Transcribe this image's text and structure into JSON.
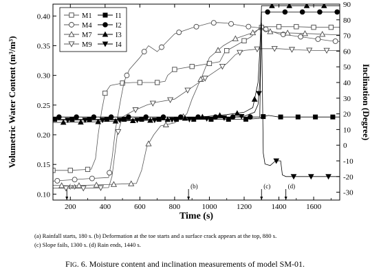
{
  "chart_data": {
    "type": "line",
    "xlabel": "Time (s)",
    "ylabel": "Volumetric Water Content (m³/m³)",
    "y2label": "Inclination (Degree)",
    "xlim": [
      100,
      1750
    ],
    "ylim": [
      0.09,
      0.42
    ],
    "y2lim": [
      -35,
      90
    ],
    "x_ticks": [
      200,
      400,
      600,
      800,
      1000,
      1200,
      1400,
      1600
    ],
    "y_ticks": [
      "0.10",
      "0.15",
      "0.20",
      "0.25",
      "0.30",
      "0.35",
      "0.40"
    ],
    "y2_ticks": [
      -30,
      -20,
      -10,
      0,
      10,
      20,
      30,
      40,
      50,
      60,
      70,
      80,
      90
    ],
    "legend_placement": "top-left",
    "series": [
      {
        "name": "M1",
        "axis": "left",
        "color": "#555555",
        "marker": "square-open",
        "points": [
          [
            100,
            0.14
          ],
          [
            200,
            0.14
          ],
          [
            320,
            0.142
          ],
          [
            345,
            0.16
          ],
          [
            360,
            0.2
          ],
          [
            380,
            0.24
          ],
          [
            400,
            0.27
          ],
          [
            430,
            0.283
          ],
          [
            500,
            0.287
          ],
          [
            560,
            0.288
          ],
          [
            700,
            0.288
          ],
          [
            745,
            0.29
          ],
          [
            760,
            0.3
          ],
          [
            800,
            0.31
          ],
          [
            900,
            0.315
          ],
          [
            1000,
            0.32
          ],
          [
            1060,
            0.323
          ],
          [
            1090,
            0.34
          ],
          [
            1150,
            0.35
          ],
          [
            1240,
            0.365
          ],
          [
            1290,
            0.38
          ],
          [
            1320,
            0.382
          ],
          [
            1400,
            0.382
          ],
          [
            1500,
            0.382
          ],
          [
            1600,
            0.381
          ],
          [
            1750,
            0.381
          ]
        ]
      },
      {
        "name": "M4",
        "axis": "left",
        "color": "#555555",
        "marker": "circle-open",
        "points": [
          [
            100,
            0.122
          ],
          [
            300,
            0.126
          ],
          [
            420,
            0.128
          ],
          [
            440,
            0.16
          ],
          [
            460,
            0.21
          ],
          [
            490,
            0.26
          ],
          [
            510,
            0.29
          ],
          [
            540,
            0.31
          ],
          [
            600,
            0.33
          ],
          [
            650,
            0.35
          ],
          [
            700,
            0.34
          ],
          [
            750,
            0.355
          ],
          [
            800,
            0.37
          ],
          [
            900,
            0.38
          ],
          [
            1000,
            0.388
          ],
          [
            1050,
            0.389
          ],
          [
            1100,
            0.388
          ],
          [
            1200,
            0.383
          ],
          [
            1290,
            0.38
          ],
          [
            1320,
            0.378
          ],
          [
            1400,
            0.37
          ],
          [
            1500,
            0.366
          ],
          [
            1600,
            0.362
          ],
          [
            1700,
            0.358
          ],
          [
            1750,
            0.357
          ]
        ]
      },
      {
        "name": "M7",
        "axis": "left",
        "color": "#555555",
        "marker": "triangle-up-open",
        "points": [
          [
            100,
            0.115
          ],
          [
            200,
            0.114
          ],
          [
            400,
            0.116
          ],
          [
            580,
            0.118
          ],
          [
            610,
            0.14
          ],
          [
            640,
            0.18
          ],
          [
            680,
            0.2
          ],
          [
            720,
            0.215
          ],
          [
            800,
            0.22
          ],
          [
            870,
            0.235
          ],
          [
            900,
            0.26
          ],
          [
            960,
            0.3
          ],
          [
            1000,
            0.33
          ],
          [
            1080,
            0.35
          ],
          [
            1150,
            0.362
          ],
          [
            1250,
            0.372
          ],
          [
            1300,
            0.38
          ],
          [
            1320,
            0.375
          ],
          [
            1400,
            0.372
          ],
          [
            1500,
            0.371
          ],
          [
            1600,
            0.37
          ],
          [
            1750,
            0.368
          ]
        ]
      },
      {
        "name": "M9",
        "axis": "left",
        "color": "#555555",
        "marker": "triangle-down-open",
        "points": [
          [
            100,
            0.11
          ],
          [
            300,
            0.11
          ],
          [
            420,
            0.111
          ],
          [
            440,
            0.13
          ],
          [
            470,
            0.2
          ],
          [
            500,
            0.23
          ],
          [
            560,
            0.24
          ],
          [
            640,
            0.25
          ],
          [
            700,
            0.255
          ],
          [
            800,
            0.26
          ],
          [
            900,
            0.28
          ],
          [
            1000,
            0.3
          ],
          [
            1100,
            0.32
          ],
          [
            1150,
            0.335
          ],
          [
            1200,
            0.342
          ],
          [
            1300,
            0.345
          ],
          [
            1400,
            0.345
          ],
          [
            1500,
            0.343
          ],
          [
            1600,
            0.342
          ],
          [
            1750,
            0.342
          ]
        ]
      },
      {
        "name": "I1",
        "axis": "right",
        "color": "#000000",
        "marker": "square-filled",
        "points": [
          [
            100,
            16.5
          ],
          [
            300,
            16.5
          ],
          [
            600,
            16.5
          ],
          [
            900,
            16.5
          ],
          [
            1200,
            16.5
          ],
          [
            1280,
            17
          ],
          [
            1290,
            17.2
          ],
          [
            1300,
            18
          ],
          [
            1340,
            19
          ],
          [
            1400,
            18
          ],
          [
            1500,
            18
          ],
          [
            1600,
            18
          ],
          [
            1750,
            18
          ]
        ]
      },
      {
        "name": "I2",
        "axis": "right",
        "color": "#000000",
        "marker": "circle-filled",
        "points": [
          [
            100,
            18
          ],
          [
            300,
            18
          ],
          [
            600,
            18
          ],
          [
            900,
            18
          ],
          [
            1000,
            18
          ],
          [
            1100,
            18
          ],
          [
            1200,
            18
          ],
          [
            1260,
            18
          ],
          [
            1280,
            18
          ],
          [
            1290,
            18
          ],
          [
            1300,
            85
          ],
          [
            1310,
            85
          ],
          [
            1400,
            85
          ],
          [
            1500,
            85
          ],
          [
            1600,
            85
          ],
          [
            1750,
            85
          ]
        ]
      },
      {
        "name": "I3",
        "axis": "right",
        "color": "#000000",
        "marker": "triangle-up-filled",
        "points": [
          [
            100,
            14.5
          ],
          [
            300,
            14.8
          ],
          [
            500,
            15.5
          ],
          [
            700,
            16
          ],
          [
            900,
            17.5
          ],
          [
            1000,
            18.5
          ],
          [
            1100,
            19.5
          ],
          [
            1200,
            21
          ],
          [
            1250,
            24
          ],
          [
            1280,
            40
          ],
          [
            1290,
            60
          ],
          [
            1300,
            89
          ],
          [
            1310,
            89
          ],
          [
            1400,
            89
          ],
          [
            1500,
            89
          ],
          [
            1600,
            89
          ],
          [
            1750,
            89
          ]
        ]
      },
      {
        "name": "I4",
        "axis": "right",
        "color": "#000000",
        "marker": "triangle-down-filled",
        "points": [
          [
            100,
            16
          ],
          [
            400,
            16
          ],
          [
            700,
            16
          ],
          [
            900,
            16.5
          ],
          [
            1000,
            17
          ],
          [
            1100,
            17.5
          ],
          [
            1200,
            18.5
          ],
          [
            1260,
            21
          ],
          [
            1280,
            26
          ],
          [
            1290,
            40
          ],
          [
            1300,
            78
          ],
          [
            1310,
            -5
          ],
          [
            1320,
            -12
          ],
          [
            1350,
            -13
          ],
          [
            1380,
            -10
          ],
          [
            1410,
            -10
          ],
          [
            1420,
            -19
          ],
          [
            1440,
            -20
          ],
          [
            1500,
            -20
          ],
          [
            1600,
            -20
          ],
          [
            1700,
            -20
          ],
          [
            1750,
            -20
          ]
        ]
      }
    ],
    "event_markers": [
      {
        "label": "(a)",
        "x": 180
      },
      {
        "label": "(b)",
        "x": 880
      },
      {
        "label": "(c)",
        "x": 1300
      },
      {
        "label": "(d)",
        "x": 1440
      }
    ]
  },
  "notes": {
    "line1": "(a) Rainfall starts, 180 s. (b) Deformation at the toe starts and a surface crack appears at the top, 880 s.",
    "line2": "(c) Slope fails, 1300 s. (d) Rain ends, 1440 s."
  },
  "caption": {
    "prefix": "F",
    "smallcaps": "IG",
    "text": ". 6. Moisture content and inclination measurements of model SM-01."
  }
}
